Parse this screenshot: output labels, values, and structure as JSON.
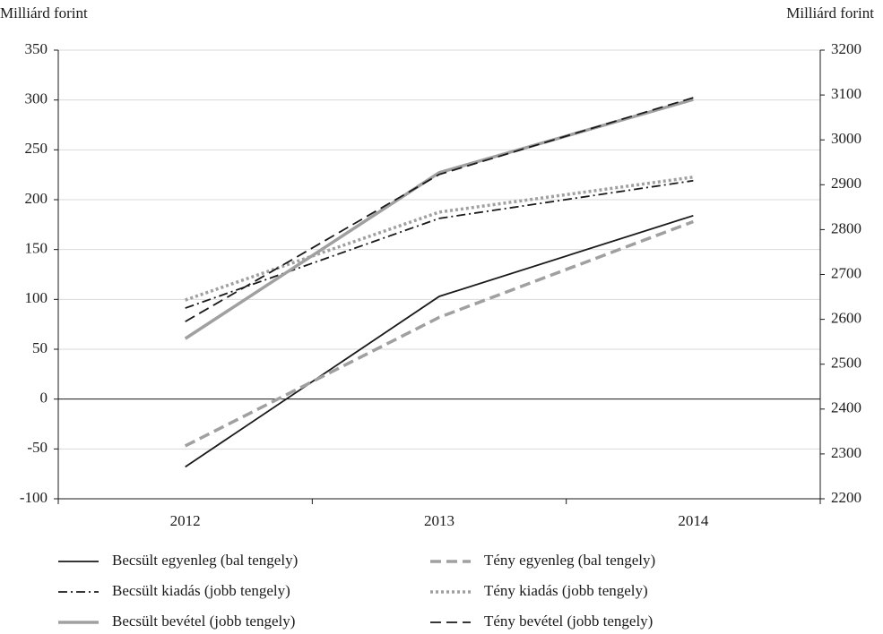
{
  "chart_data": {
    "type": "line",
    "y_label": "Milliárd forint",
    "y2_label": "Milliárd forint",
    "categories": [
      "2012",
      "2013",
      "2014"
    ],
    "ylim": [
      -100,
      350
    ],
    "yticks": [
      -100,
      -50,
      0,
      50,
      100,
      150,
      200,
      250,
      300,
      350
    ],
    "y2lim": [
      2200,
      3200
    ],
    "y2ticks": [
      2200,
      2300,
      2400,
      2500,
      2600,
      2700,
      2800,
      2900,
      3000,
      3100,
      3200
    ],
    "grid": true,
    "legend": "bottom",
    "series": [
      {
        "name": "Becsült egyenleg (bal tengely)",
        "color": "#1a1a1a",
        "dash": "solid",
        "values": [
          -68,
          103,
          184
        ]
      },
      {
        "name": "Tény egyenleg (bal tengely)",
        "color": "#a0a0a0",
        "dash": "dashed",
        "values": [
          -47,
          82,
          178
        ]
      },
      {
        "name": "Becsült kiadás (jobb tengely)",
        "color": "#1a1a1a",
        "dash": "dashdot",
        "axis": "y2",
        "values": [
          2625,
          2825,
          2909
        ]
      },
      {
        "name": "Tény kiadás (jobb tengely)",
        "color": "#a0a0a0",
        "dash": "dotted",
        "axis": "y2",
        "values": [
          2643,
          2839,
          2917
        ]
      },
      {
        "name": "Becsült bevétel (jobb tengely)",
        "color": "#a0a0a0",
        "dash": "solid",
        "axis": "y2",
        "values": [
          2557,
          2927,
          3090
        ]
      },
      {
        "name": "Tény bevétel (jobb tengely)",
        "color": "#1a1a1a",
        "dash": "dashed",
        "axis": "y2",
        "values": [
          2595,
          2923,
          3094
        ]
      }
    ]
  }
}
